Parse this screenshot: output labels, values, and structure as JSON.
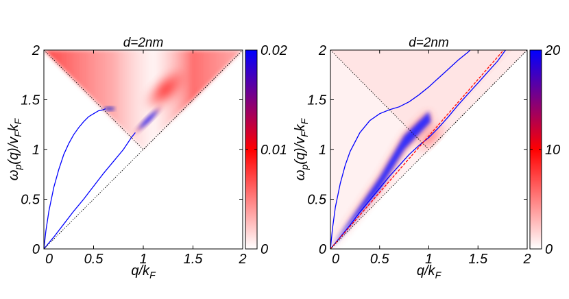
{
  "chart_data": [
    {
      "type": "heatmap",
      "title": "d=2nm",
      "xlabel": "q/k",
      "xlabel_sub": "F",
      "ylabel_parts": [
        "ω",
        "p",
        "(q)/v",
        "F",
        "k",
        "F"
      ],
      "xlim": [
        0,
        2
      ],
      "ylim": [
        0,
        2
      ],
      "xticks": [
        "0",
        "0.5",
        "1",
        "1.5",
        "2"
      ],
      "yticks": [
        "0",
        "0.5",
        "1",
        "1.5",
        "2"
      ],
      "colorbar": {
        "ticks": [
          "0",
          "0.01",
          "0.02"
        ],
        "range": [
          0,
          0.02
        ],
        "colors": [
          "#ffffff",
          "#ff0000",
          "#0000ff"
        ]
      },
      "curves": [
        {
          "kind": "plasmon-branch",
          "color": "#0000ff",
          "points": [
            [
              0,
              0
            ],
            [
              0.02,
              0.18
            ],
            [
              0.05,
              0.38
            ],
            [
              0.1,
              0.62
            ],
            [
              0.15,
              0.8
            ],
            [
              0.2,
              0.95
            ],
            [
              0.25,
              1.06
            ],
            [
              0.3,
              1.15
            ],
            [
              0.35,
              1.22
            ],
            [
              0.4,
              1.28
            ],
            [
              0.45,
              1.33
            ],
            [
              0.5,
              1.36
            ],
            [
              0.55,
              1.39
            ],
            [
              0.6,
              1.4
            ],
            [
              0.62,
              1.41
            ]
          ]
        },
        {
          "kind": "plasmon-branch",
          "color": "#0000ff",
          "points": [
            [
              0,
              0
            ],
            [
              0.1,
              0.12
            ],
            [
              0.2,
              0.25
            ],
            [
              0.3,
              0.38
            ],
            [
              0.4,
              0.5
            ],
            [
              0.5,
              0.63
            ],
            [
              0.6,
              0.76
            ],
            [
              0.7,
              0.88
            ],
            [
              0.8,
              1.0
            ],
            [
              0.88,
              1.12
            ],
            [
              0.92,
              1.17
            ]
          ]
        },
        {
          "kind": "dotted-boundary",
          "color": "#000000",
          "points": [
            [
              0,
              2
            ],
            [
              1,
              1
            ],
            [
              2,
              2
            ]
          ]
        },
        {
          "kind": "dotted-boundary",
          "color": "#000000",
          "points": [
            [
              0,
              0
            ],
            [
              2,
              2
            ]
          ]
        }
      ]
    },
    {
      "type": "heatmap",
      "title": "d=2nm",
      "xlabel": "q/k",
      "xlabel_sub": "F",
      "ylabel_parts": [
        "ω",
        "p",
        "(q)/v",
        "F",
        "k",
        "F"
      ],
      "xlim": [
        0,
        2
      ],
      "ylim": [
        0,
        2
      ],
      "xticks": [
        "0",
        "0.5",
        "1",
        "1.5",
        "2"
      ],
      "yticks": [
        "0",
        "0.5",
        "1",
        "1.5",
        "2"
      ],
      "colorbar": {
        "ticks": [
          "0",
          "10",
          "20"
        ],
        "range": [
          0,
          20
        ],
        "colors": [
          "#ffffff",
          "#ff0000",
          "#0000ff"
        ]
      },
      "curves": [
        {
          "kind": "plasmon-branch",
          "color": "#0000ff",
          "points": [
            [
              0,
              0
            ],
            [
              0.02,
              0.2
            ],
            [
              0.05,
              0.42
            ],
            [
              0.1,
              0.66
            ],
            [
              0.15,
              0.84
            ],
            [
              0.2,
              0.98
            ],
            [
              0.3,
              1.17
            ],
            [
              0.4,
              1.29
            ],
            [
              0.5,
              1.36
            ],
            [
              0.6,
              1.4
            ],
            [
              0.7,
              1.43
            ],
            [
              0.8,
              1.48
            ],
            [
              0.9,
              1.55
            ],
            [
              1.0,
              1.63
            ],
            [
              1.1,
              1.72
            ],
            [
              1.2,
              1.81
            ],
            [
              1.3,
              1.9
            ],
            [
              1.4,
              1.98
            ],
            [
              1.42,
              2.0
            ]
          ]
        },
        {
          "kind": "plasmon-branch",
          "color": "#0000ff",
          "points": [
            [
              0,
              0
            ],
            [
              0.1,
              0.12
            ],
            [
              0.2,
              0.24
            ],
            [
              0.3,
              0.37
            ],
            [
              0.4,
              0.49
            ],
            [
              0.5,
              0.61
            ],
            [
              0.6,
              0.73
            ],
            [
              0.7,
              0.84
            ],
            [
              0.8,
              0.95
            ],
            [
              0.9,
              1.04
            ],
            [
              1.0,
              1.12
            ],
            [
              1.1,
              1.22
            ],
            [
              1.2,
              1.33
            ],
            [
              1.3,
              1.45
            ],
            [
              1.4,
              1.56
            ],
            [
              1.5,
              1.67
            ],
            [
              1.6,
              1.78
            ],
            [
              1.7,
              1.89
            ],
            [
              1.78,
              2.0
            ]
          ]
        },
        {
          "kind": "line",
          "color": "#ff0000",
          "points": [
            [
              0,
              0
            ],
            [
              1.76,
              2.0
            ]
          ]
        },
        {
          "kind": "dotted-boundary",
          "color": "#000000",
          "points": [
            [
              0,
              2
            ],
            [
              1,
              1
            ],
            [
              2,
              2
            ]
          ]
        },
        {
          "kind": "dotted-boundary",
          "color": "#000000",
          "points": [
            [
              0,
              0
            ],
            [
              2,
              2
            ]
          ]
        }
      ]
    }
  ]
}
